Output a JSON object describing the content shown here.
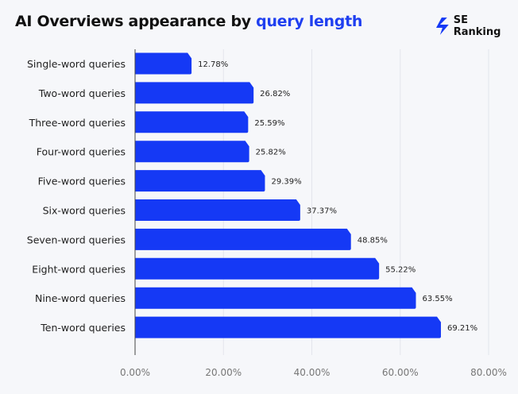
{
  "header": {
    "title_prefix": "AI Overviews appearance by ",
    "title_highlight": "query length",
    "logo_text": "SE Ranking"
  },
  "colors": {
    "bar": "#1539f5",
    "title_highlight": "#1f3ff0",
    "background": "#f6f7fa"
  },
  "chart_data": {
    "type": "bar",
    "orientation": "horizontal",
    "title": "AI Overviews appearance by query length",
    "categories": [
      "Single-word queries",
      "Two-word queries",
      "Three-word queries",
      "Four-word queries",
      "Five-word queries",
      "Six-word queries",
      "Seven-word queries",
      "Eight-word queries",
      "Nine-word queries",
      "Ten-word queries"
    ],
    "values": [
      12.78,
      26.82,
      25.59,
      25.82,
      29.39,
      37.37,
      48.85,
      55.22,
      63.55,
      69.21
    ],
    "data_labels": [
      "12.78%",
      "26.82%",
      "25.59%",
      "25.82%",
      "29.39%",
      "37.37%",
      "48.85%",
      "55.22%",
      "63.55%",
      "69.21%"
    ],
    "xlim": [
      0,
      80
    ],
    "xticks": [
      0,
      20,
      40,
      60,
      80
    ],
    "xtick_labels": [
      "0.00%",
      "20.00%",
      "40.00%",
      "60.00%",
      "80.00%"
    ],
    "grid": "vertical",
    "legend": "none"
  }
}
